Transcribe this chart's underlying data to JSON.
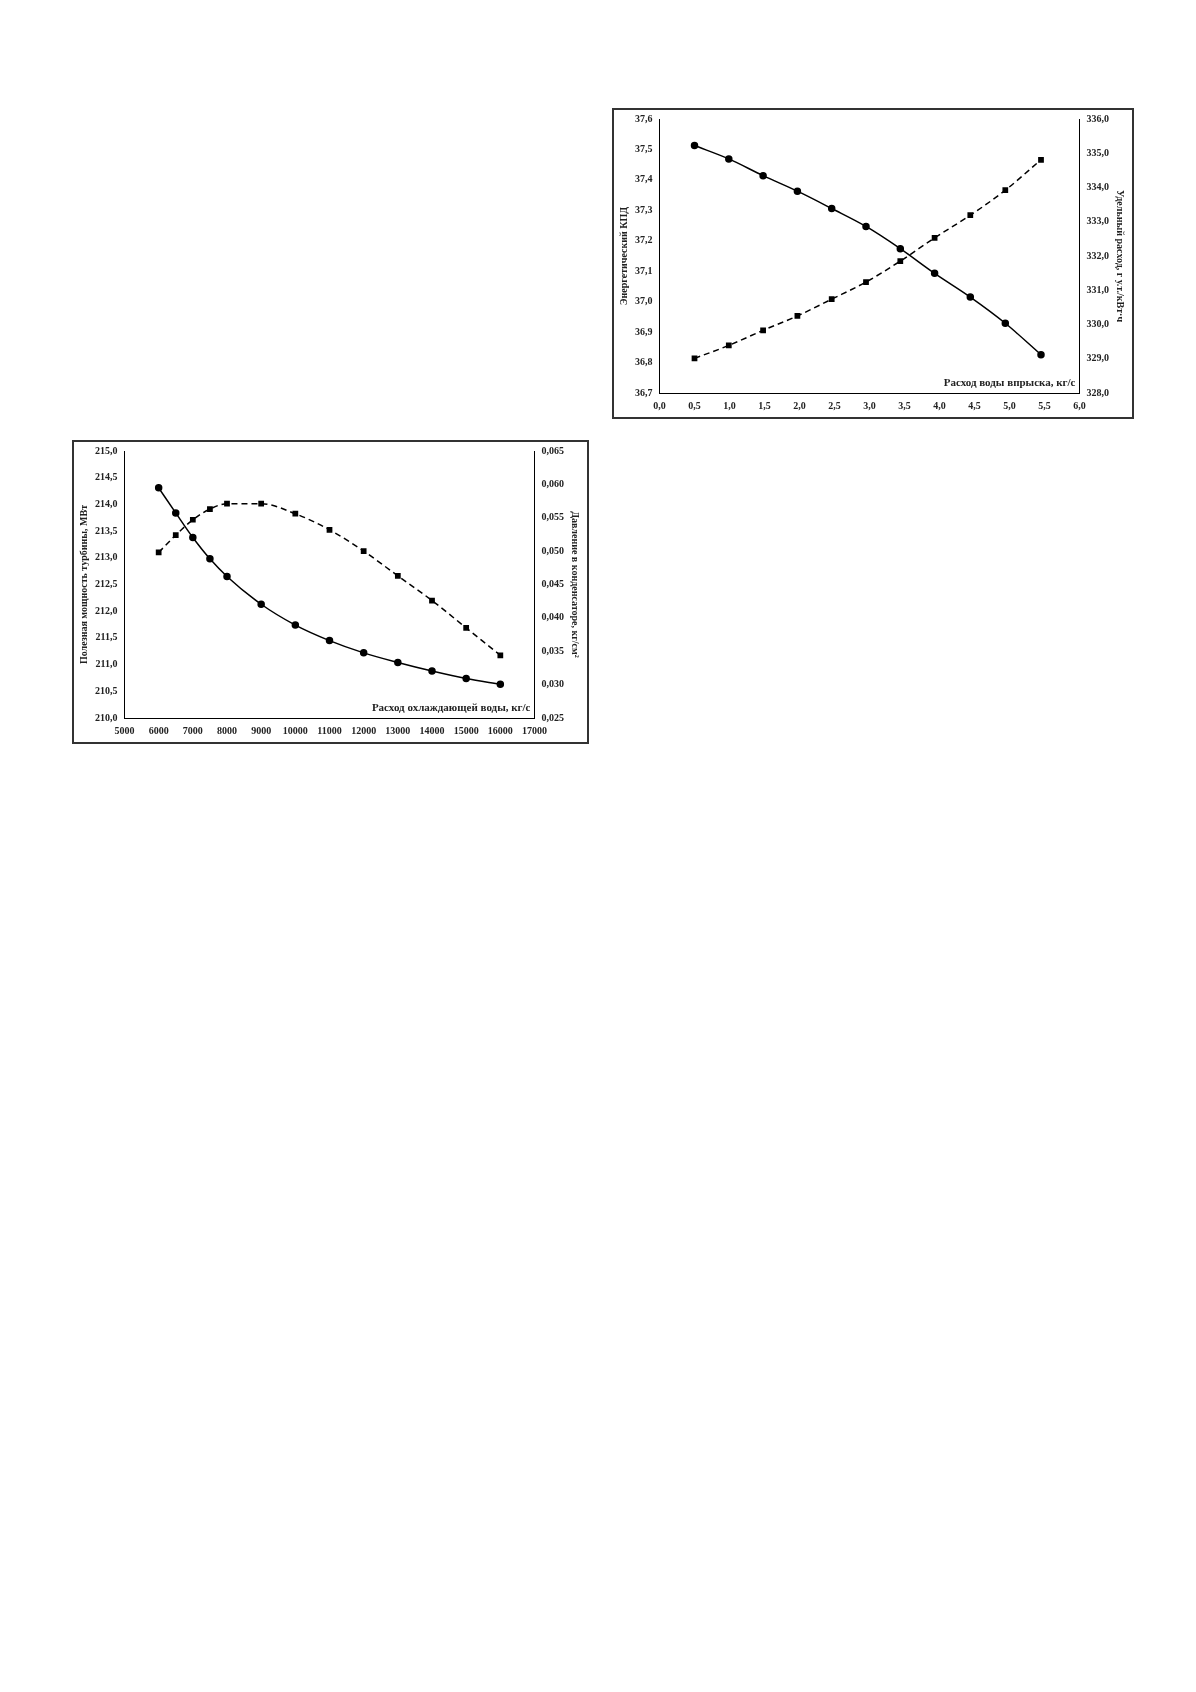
{
  "chart_data": [
    {
      "type": "line",
      "xlabel": "Расход воды впрыска, кг/с",
      "ylabel": "Энергетический КПД",
      "y2label": "Удельный расход, г у.т./кВт·ч",
      "x": [
        0.5,
        0.99,
        1.48,
        1.97,
        2.46,
        2.95,
        3.44,
        3.93,
        4.44,
        4.94,
        5.45
      ],
      "series": [
        {
          "color": "#000000",
          "marker": "circle",
          "line_style": "solid",
          "values": [
            37.513,
            37.469,
            37.414,
            37.363,
            37.306,
            37.247,
            37.174,
            37.093,
            37.015,
            36.929,
            36.826
          ]
        },
        {
          "color": "#000000",
          "marker": "square",
          "line_style": "dashed",
          "axis": "y2",
          "values": [
            329.01,
            329.39,
            329.83,
            330.25,
            330.74,
            331.24,
            331.85,
            332.53,
            333.19,
            333.92,
            334.81
          ]
        }
      ],
      "xlim": [
        0,
        6
      ],
      "xticks": [
        {
          "value": 0,
          "label": "0,0"
        },
        {
          "value": 0.5,
          "label": "0,5"
        },
        {
          "value": 1,
          "label": "1,0"
        },
        {
          "value": 1.5,
          "label": "1,5"
        },
        {
          "value": 2,
          "label": "2,0"
        },
        {
          "value": 2.5,
          "label": "2,5"
        },
        {
          "value": 3,
          "label": "3,0"
        },
        {
          "value": 3.5,
          "label": "3,5"
        },
        {
          "value": 4,
          "label": "4,0"
        },
        {
          "value": 4.5,
          "label": "4,5"
        },
        {
          "value": 5,
          "label": "5,0"
        },
        {
          "value": 5.5,
          "label": "5,5"
        },
        {
          "value": 6,
          "label": "6,0"
        }
      ],
      "ylim": [
        36.7,
        37.6
      ],
      "yticks": [
        {
          "value": 36.7,
          "label": "36,7"
        },
        {
          "value": 36.8,
          "label": "36,8"
        },
        {
          "value": 36.9,
          "label": "36,9"
        },
        {
          "value": 37,
          "label": "37,0"
        },
        {
          "value": 37.1,
          "label": "37,1"
        },
        {
          "value": 37.2,
          "label": "37,2"
        },
        {
          "value": 37.3,
          "label": "37,3"
        },
        {
          "value": 37.4,
          "label": "37,4"
        },
        {
          "value": 37.5,
          "label": "37,5"
        },
        {
          "value": 37.6,
          "label": "37,6"
        }
      ],
      "y2lim": [
        328,
        336
      ],
      "y2ticks": [
        {
          "value": 328,
          "label": "328,0"
        },
        {
          "value": 329,
          "label": "329,0"
        },
        {
          "value": 330,
          "label": "330,0"
        },
        {
          "value": 331,
          "label": "331,0"
        },
        {
          "value": 332,
          "label": "332,0"
        },
        {
          "value": 333,
          "label": "333,0"
        },
        {
          "value": 334,
          "label": "334,0"
        },
        {
          "value": 335,
          "label": "335,0"
        },
        {
          "value": 336,
          "label": "336,0"
        }
      ]
    },
    {
      "type": "line",
      "xlabel": "Расход охлаждающей воды, кг/с",
      "ylabel": "Полезная мощность турбины, МВт",
      "y2label": "Давление в конденсаторе, кг/см²",
      "x": [
        6000,
        6500,
        7000,
        7500,
        8000,
        9000,
        10000,
        11000,
        12000,
        13000,
        14000,
        15000,
        16000
      ],
      "series": [
        {
          "color": "#000000",
          "marker": "circle",
          "line_style": "solid",
          "values": [
            214.31,
            213.84,
            213.38,
            212.98,
            212.65,
            212.13,
            211.74,
            211.45,
            211.22,
            211.04,
            210.88,
            210.74,
            210.63
          ]
        },
        {
          "color": "#000000",
          "marker": "square",
          "line_style": "dashed",
          "axis": "y2",
          "values": [
            0.0498,
            0.0524,
            0.0547,
            0.0563,
            0.0571,
            0.0571,
            0.0556,
            0.0532,
            0.05,
            0.0463,
            0.0426,
            0.0385,
            0.0344
          ]
        }
      ],
      "xlim": [
        5000,
        17000
      ],
      "xticks": [
        5000,
        6000,
        7000,
        8000,
        9000,
        10000,
        11000,
        12000,
        13000,
        14000,
        15000,
        16000,
        17000
      ],
      "ylim": [
        210,
        215
      ],
      "yticks": [
        {
          "value": 210,
          "label": "210,0"
        },
        {
          "value": 210.5,
          "label": "210,5"
        },
        {
          "value": 211,
          "label": "211,0"
        },
        {
          "value": 211.5,
          "label": "211,5"
        },
        {
          "value": 212,
          "label": "212,0"
        },
        {
          "value": 212.5,
          "label": "212,5"
        },
        {
          "value": 213,
          "label": "213,0"
        },
        {
          "value": 213.5,
          "label": "213,5"
        },
        {
          "value": 214,
          "label": "214,0"
        },
        {
          "value": 214.5,
          "label": "214,5"
        },
        {
          "value": 215,
          "label": "215,0"
        }
      ],
      "y2lim": [
        0.025,
        0.065
      ],
      "y2ticks": [
        {
          "value": 0.025,
          "label": "0,025"
        },
        {
          "value": 0.03,
          "label": "0,030"
        },
        {
          "value": 0.035,
          "label": "0,035"
        },
        {
          "value": 0.04,
          "label": "0,040"
        },
        {
          "value": 0.045,
          "label": "0,045"
        },
        {
          "value": 0.05,
          "label": "0,050"
        },
        {
          "value": 0.055,
          "label": "0,055"
        },
        {
          "value": 0.06,
          "label": "0,060"
        },
        {
          "value": 0.065,
          "label": "0,065"
        }
      ]
    }
  ]
}
